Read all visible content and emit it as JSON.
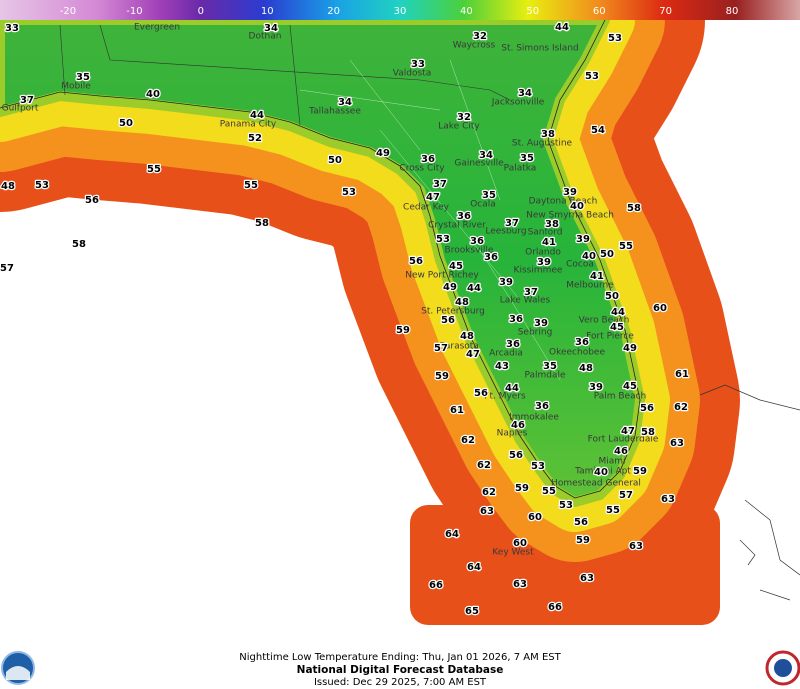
{
  "colorbar": {
    "ticks": [
      -20,
      -10,
      0,
      10,
      20,
      30,
      40,
      50,
      60,
      70,
      80
    ]
  },
  "cities": [
    "Evergreen",
    "Dothan",
    "Waycross",
    "St. Simons Island",
    "Valdosta",
    "Mobile",
    "Jacksonville",
    "Gulfport",
    "Tallahassee",
    "Panama City",
    "Lake City",
    "St. Augustine",
    "Gainesville",
    "Palatka",
    "Cross City",
    "Ocala",
    "Daytona Beach",
    "Cedar Key",
    "New Smyrna Beach",
    "Crystal River",
    "Leesburg",
    "Sanford",
    "Brooksville",
    "Orlando",
    "Cocoa",
    "Kissimmee",
    "New Port Richey",
    "Melbourne",
    "Lake Wales",
    "St. Petersburg",
    "Vero Beach",
    "Sebring",
    "Fort Pierce",
    "Sarasota",
    "Okeechobee",
    "Arcadia",
    "Palmdale",
    "Ft. Myers",
    "Palm Beach",
    "Immokalee",
    "Naples",
    "Fort Lauderdale",
    "Miami",
    "Tamiami Apt",
    "Homestead General",
    "Key West"
  ],
  "temperatures": [
    33,
    34,
    32,
    44,
    53,
    35,
    33,
    53,
    40,
    37,
    34,
    34,
    44,
    32,
    50,
    54,
    38,
    52,
    50,
    49,
    36,
    34,
    35,
    55,
    37,
    39,
    48,
    53,
    55,
    53,
    56,
    47,
    35,
    40,
    58,
    36,
    37,
    38,
    58,
    53,
    36,
    41,
    39,
    55,
    58,
    36,
    40,
    50,
    39,
    56,
    45,
    41,
    57,
    39,
    49,
    44,
    37,
    48,
    50,
    60,
    56,
    36,
    39,
    44,
    45,
    59,
    48,
    36,
    36,
    49,
    57,
    47,
    43,
    35,
    48,
    59,
    61,
    44,
    39,
    45,
    56,
    61,
    62,
    56,
    36,
    46,
    47,
    58,
    62,
    63,
    46,
    56,
    62,
    53,
    40,
    59,
    59,
    55,
    62,
    57,
    63,
    63,
    53,
    55,
    60,
    56,
    64,
    60,
    59,
    63,
    64,
    66,
    63,
    63,
    65,
    66
  ],
  "footer": {
    "product": "Nighttime Low Temperature Ending: Thu, Jan 01 2026, 7 AM EST",
    "title": "National Digital Forecast Database",
    "issued": "Issued: Dec 29 2025, 7:00 AM EST"
  }
}
